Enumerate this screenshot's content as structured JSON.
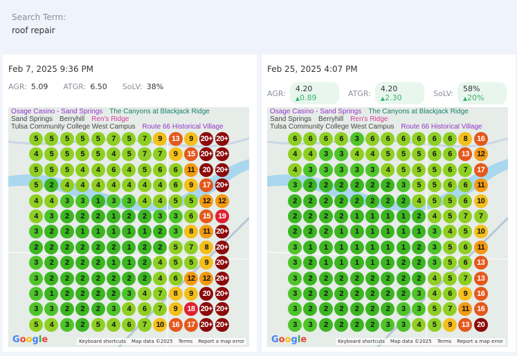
{
  "search": {
    "label": "Search Term:",
    "value": "roof repair"
  },
  "reports": [
    {
      "date": "Feb 7, 2025 9:36 PM",
      "metrics": [
        {
          "label": "AGR:",
          "value": "5.09",
          "delta": ""
        },
        {
          "label": "ATGR:",
          "value": "6.50",
          "delta": ""
        },
        {
          "label": "SoLV:",
          "value": "38%",
          "delta": ""
        }
      ],
      "grid": [
        [
          "5",
          "5",
          "5",
          "5",
          "5",
          "7",
          "5",
          "7",
          "9",
          "13",
          "9",
          "20+",
          "20+"
        ],
        [
          "4",
          "5",
          "5",
          "5",
          "5",
          "4",
          "5",
          "7",
          "7",
          "9",
          "15",
          "20+",
          "20+"
        ],
        [
          "5",
          "5",
          "5",
          "4",
          "4",
          "6",
          "4",
          "5",
          "6",
          "6",
          "11",
          "20",
          "20+"
        ],
        [
          "5",
          "2",
          "4",
          "4",
          "4",
          "4",
          "4",
          "4",
          "4",
          "6",
          "9",
          "17",
          "20+"
        ],
        [
          "4",
          "4",
          "3",
          "3",
          "1",
          "3",
          "3",
          "4",
          "4",
          "5",
          "5",
          "12",
          "12"
        ],
        [
          "4",
          "3",
          "2",
          "2",
          "2",
          "1",
          "2",
          "2",
          "3",
          "3",
          "6",
          "15",
          "19"
        ],
        [
          "3",
          "2",
          "2",
          "1",
          "1",
          "1",
          "1",
          "1",
          "2",
          "3",
          "8",
          "11",
          "20+"
        ],
        [
          "2",
          "2",
          "2",
          "2",
          "2",
          "2",
          "1",
          "2",
          "2",
          "5",
          "7",
          "8",
          "20+"
        ],
        [
          "3",
          "2",
          "2",
          "2",
          "2",
          "1",
          "1",
          "2",
          "4",
          "5",
          "5",
          "9",
          "20+"
        ],
        [
          "3",
          "2",
          "2",
          "2",
          "2",
          "2",
          "2",
          "2",
          "4",
          "6",
          "12",
          "12",
          "20+"
        ],
        [
          "3",
          "1",
          "2",
          "2",
          "2",
          "2",
          "3",
          "4",
          "7",
          "8",
          "9",
          "20",
          "20+"
        ],
        [
          "3",
          "3",
          "2",
          "2",
          "2",
          "3",
          "4",
          "6",
          "7",
          "9",
          "18",
          "20+",
          "20+"
        ],
        [
          "5",
          "4",
          "3",
          "2",
          "5",
          "4",
          "6",
          "7",
          "10",
          "16",
          "17",
          "20+",
          "20+"
        ]
      ]
    },
    {
      "date": "Feb 25, 2025 4:07 PM",
      "metrics": [
        {
          "label": "AGR:",
          "value": "4.20",
          "delta": "0.89"
        },
        {
          "label": "ATGR:",
          "value": "4.20",
          "delta": "2.30"
        },
        {
          "label": "SoLV:",
          "value": "58%",
          "delta": "20%"
        }
      ],
      "grid": [
        [
          "6",
          "6",
          "6",
          "6",
          "3",
          "6",
          "6",
          "6",
          "6",
          "6",
          "6",
          "8",
          "16"
        ],
        [
          "4",
          "4",
          "3",
          "3",
          "4",
          "4",
          "5",
          "5",
          "5",
          "6",
          "6",
          "13",
          "12"
        ],
        [
          "4",
          "3",
          "3",
          "3",
          "3",
          "3",
          "4",
          "5",
          "5",
          "5",
          "6",
          "7",
          "17"
        ],
        [
          "3",
          "2",
          "2",
          "2",
          "2",
          "2",
          "2",
          "3",
          "5",
          "5",
          "6",
          "6",
          "11"
        ],
        [
          "2",
          "2",
          "2",
          "2",
          "2",
          "2",
          "2",
          "2",
          "4",
          "5",
          "5",
          "6",
          "10"
        ],
        [
          "2",
          "2",
          "2",
          "2",
          "1",
          "1",
          "1",
          "1",
          "2",
          "4",
          "5",
          "7",
          "7"
        ],
        [
          "2",
          "2",
          "2",
          "1",
          "1",
          "1",
          "1",
          "1",
          "1",
          "3",
          "4",
          "5",
          "10"
        ],
        [
          "3",
          "1",
          "1",
          "1",
          "1",
          "1",
          "1",
          "1",
          "2",
          "3",
          "5",
          "6",
          "11"
        ],
        [
          "3",
          "2",
          "1",
          "1",
          "1",
          "1",
          "1",
          "2",
          "2",
          "3",
          "5",
          "6",
          "13"
        ],
        [
          "3",
          "2",
          "2",
          "2",
          "2",
          "2",
          "2",
          "2",
          "2",
          "4",
          "5",
          "7",
          "13"
        ],
        [
          "3",
          "2",
          "2",
          "2",
          "2",
          "2",
          "2",
          "2",
          "3",
          "4",
          "6",
          "9",
          "16"
        ],
        [
          "3",
          "2",
          "2",
          "2",
          "2",
          "2",
          "2",
          "3",
          "3",
          "5",
          "7",
          "11",
          "16"
        ],
        [
          "3",
          "3",
          "2",
          "2",
          "2",
          "2",
          "3",
          "3",
          "4",
          "5",
          "9",
          "13",
          "20"
        ]
      ]
    }
  ],
  "map": {
    "labels": {
      "casino": "Osage Casino - Sand Springs",
      "canyons": "The Canyons at Blackjack Ridge",
      "city": "Sand Springs",
      "berryhill": "Berryhill",
      "route66": "Route 66 Historical Village",
      "renridge": "Ren's Ridge",
      "tulsacc": "Tulsa Community College West Campus"
    },
    "logo": "Google",
    "attribution": [
      "Keyboard shortcuts",
      "Map data ©2025",
      "Terms",
      "Report a map error"
    ]
  },
  "colors": {
    "rank_1_2": "#3cb521",
    "rank_3": "#4fc42a",
    "rank_4_7": "#8fcf23",
    "rank_8_10": "#f4bf1c",
    "rank_11_12": "#f39a12",
    "rank_13_17": "#e5581c",
    "rank_18_19": "#de2030",
    "rank_20_plus": "#8c0a0a",
    "delta_up": "#3bb36a"
  }
}
